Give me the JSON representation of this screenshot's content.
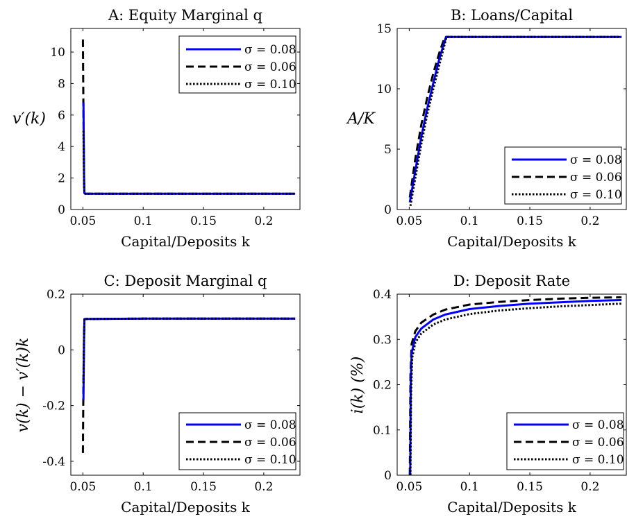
{
  "chart_data": [
    {
      "type": "line",
      "panel": "A",
      "title": "A: Equity Marginal q",
      "xlabel": "Capital/Deposits k",
      "ylabel": "v′(k)",
      "xlim": [
        0.04,
        0.23
      ],
      "ylim": [
        0,
        11.5
      ],
      "xticks": [
        0.05,
        0.1,
        0.15,
        0.2
      ],
      "xtick_labels": [
        "0.05",
        "0.1",
        "0.15",
        "0.2"
      ],
      "yticks": [
        0,
        2,
        4,
        6,
        8,
        10
      ],
      "ytick_labels": [
        "0",
        "2",
        "4",
        "6",
        "8",
        "10"
      ],
      "legend_position": "top-right",
      "series": [
        {
          "name": "σ = 0.08",
          "color": "#0000ff",
          "dash": "solid",
          "x": [
            0.0505,
            0.051,
            0.0512,
            0.052,
            0.06,
            0.1,
            0.15,
            0.2,
            0.226
          ],
          "y": [
            6.8,
            2.0,
            1.05,
            1.0,
            1.0,
            1.0,
            1.0,
            1.0,
            1.0
          ]
        },
        {
          "name": "σ = 0.06",
          "color": "#000000",
          "dash": "dashed",
          "x": [
            0.05,
            0.0505,
            0.051,
            0.0512,
            0.052,
            0.06,
            0.1,
            0.15,
            0.2,
            0.226
          ],
          "y": [
            10.8,
            6.0,
            1.8,
            1.05,
            1.0,
            1.0,
            1.0,
            1.0,
            1.0,
            1.0
          ]
        },
        {
          "name": "σ = 0.10",
          "color": "#000000",
          "dash": "dotted",
          "x": [
            0.0505,
            0.051,
            0.0512,
            0.052,
            0.06,
            0.1,
            0.15,
            0.2,
            0.226
          ],
          "y": [
            5.0,
            1.7,
            1.05,
            1.0,
            1.0,
            1.0,
            1.0,
            1.0,
            1.0
          ]
        }
      ]
    },
    {
      "type": "line",
      "panel": "B",
      "title": "B: Loans/Capital",
      "xlabel": "Capital/Deposits k",
      "ylabel": "A/K",
      "xlim": [
        0.04,
        0.23
      ],
      "ylim": [
        0,
        15
      ],
      "xticks": [
        0.05,
        0.1,
        0.15,
        0.2
      ],
      "xtick_labels": [
        "0.05",
        "0.1",
        "0.15",
        "0.2"
      ],
      "yticks": [
        0,
        5,
        10,
        15
      ],
      "ytick_labels": [
        "0",
        "5",
        "10",
        "15"
      ],
      "legend_position": "bottom-right",
      "series": [
        {
          "name": "σ = 0.08",
          "color": "#0000ff",
          "dash": "solid",
          "x": [
            0.0505,
            0.055,
            0.06,
            0.065,
            0.07,
            0.075,
            0.0805,
            0.1,
            0.15,
            0.2,
            0.226
          ],
          "y": [
            0.6,
            3.2,
            6.0,
            8.4,
            10.5,
            12.5,
            14.3,
            14.3,
            14.3,
            14.3,
            14.3
          ]
        },
        {
          "name": "σ = 0.06",
          "color": "#000000",
          "dash": "dashed",
          "x": [
            0.0505,
            0.055,
            0.06,
            0.065,
            0.07,
            0.075,
            0.0795,
            0.1,
            0.15,
            0.2,
            0.226
          ],
          "y": [
            1.0,
            4.2,
            7.0,
            9.3,
            11.3,
            13.0,
            14.3,
            14.3,
            14.3,
            14.3,
            14.3
          ]
        },
        {
          "name": "σ = 0.10",
          "color": "#000000",
          "dash": "dotted",
          "x": [
            0.051,
            0.055,
            0.06,
            0.065,
            0.07,
            0.075,
            0.081,
            0.1,
            0.15,
            0.2,
            0.226
          ],
          "y": [
            0.3,
            2.6,
            5.4,
            7.9,
            10.0,
            12.0,
            14.3,
            14.3,
            14.3,
            14.3,
            14.3
          ]
        }
      ]
    },
    {
      "type": "line",
      "panel": "C",
      "title": "C: Deposit Marginal q",
      "xlabel": "Capital/Deposits k",
      "ylabel": "v(k) − v′(k)k",
      "xlim": [
        0.04,
        0.23
      ],
      "ylim": [
        -0.45,
        0.2
      ],
      "xticks": [
        0.05,
        0.1,
        0.15,
        0.2
      ],
      "xtick_labels": [
        "0.05",
        "0.1",
        "0.15",
        "0.2"
      ],
      "yticks": [
        -0.4,
        -0.2,
        0,
        0.2
      ],
      "ytick_labels": [
        "-0.4",
        "-0.2",
        "0",
        "0.2"
      ],
      "legend_position": "bottom-right",
      "series": [
        {
          "name": "σ = 0.08",
          "color": "#0000ff",
          "dash": "solid",
          "x": [
            0.0505,
            0.051,
            0.0513,
            0.052,
            0.06,
            0.1,
            0.15,
            0.2,
            0.226
          ],
          "y": [
            -0.18,
            0.05,
            0.11,
            0.111,
            0.111,
            0.112,
            0.112,
            0.112,
            0.112
          ]
        },
        {
          "name": "σ = 0.06",
          "color": "#000000",
          "dash": "dashed",
          "x": [
            0.05,
            0.0505,
            0.051,
            0.0513,
            0.052,
            0.06,
            0.1,
            0.15,
            0.2,
            0.226
          ],
          "y": [
            -0.37,
            -0.1,
            0.06,
            0.11,
            0.111,
            0.111,
            0.112,
            0.112,
            0.112,
            0.112
          ]
        },
        {
          "name": "σ = 0.10",
          "color": "#000000",
          "dash": "dotted",
          "x": [
            0.0505,
            0.051,
            0.0513,
            0.052,
            0.06,
            0.1,
            0.15,
            0.2,
            0.226
          ],
          "y": [
            -0.12,
            0.05,
            0.11,
            0.111,
            0.111,
            0.112,
            0.112,
            0.112,
            0.112
          ]
        }
      ]
    },
    {
      "type": "line",
      "panel": "D",
      "title": "D: Deposit Rate",
      "xlabel": "Capital/Deposits k",
      "ylabel": "i(k) (%)",
      "xlim": [
        0.04,
        0.23
      ],
      "ylim": [
        0,
        0.4
      ],
      "xticks": [
        0.05,
        0.1,
        0.15,
        0.2
      ],
      "xtick_labels": [
        "0.05",
        "0.1",
        "0.15",
        "0.2"
      ],
      "yticks": [
        0,
        0.1,
        0.2,
        0.3,
        0.4
      ],
      "ytick_labels": [
        "0",
        "0.1",
        "0.2",
        "0.3",
        "0.4"
      ],
      "legend_position": "bottom-right",
      "series": [
        {
          "name": "σ = 0.08",
          "color": "#0000ff",
          "dash": "solid",
          "x": [
            0.0508,
            0.0512,
            0.052,
            0.055,
            0.06,
            0.07,
            0.08,
            0.1,
            0.125,
            0.15,
            0.175,
            0.2,
            0.226
          ],
          "y": [
            0.0,
            0.2,
            0.27,
            0.305,
            0.324,
            0.344,
            0.355,
            0.367,
            0.374,
            0.379,
            0.382,
            0.385,
            0.387
          ]
        },
        {
          "name": "σ = 0.06",
          "color": "#000000",
          "dash": "dashed",
          "x": [
            0.0505,
            0.051,
            0.052,
            0.055,
            0.06,
            0.07,
            0.08,
            0.1,
            0.125,
            0.15,
            0.175,
            0.2,
            0.226
          ],
          "y": [
            0.0,
            0.22,
            0.29,
            0.318,
            0.337,
            0.355,
            0.366,
            0.377,
            0.383,
            0.387,
            0.39,
            0.392,
            0.393
          ]
        },
        {
          "name": "σ = 0.10",
          "color": "#000000",
          "dash": "dotted",
          "x": [
            0.051,
            0.0515,
            0.0525,
            0.055,
            0.06,
            0.07,
            0.08,
            0.1,
            0.125,
            0.15,
            0.175,
            0.2,
            0.226
          ],
          "y": [
            0.0,
            0.18,
            0.26,
            0.293,
            0.313,
            0.333,
            0.344,
            0.356,
            0.364,
            0.369,
            0.373,
            0.376,
            0.379
          ]
        }
      ]
    }
  ]
}
